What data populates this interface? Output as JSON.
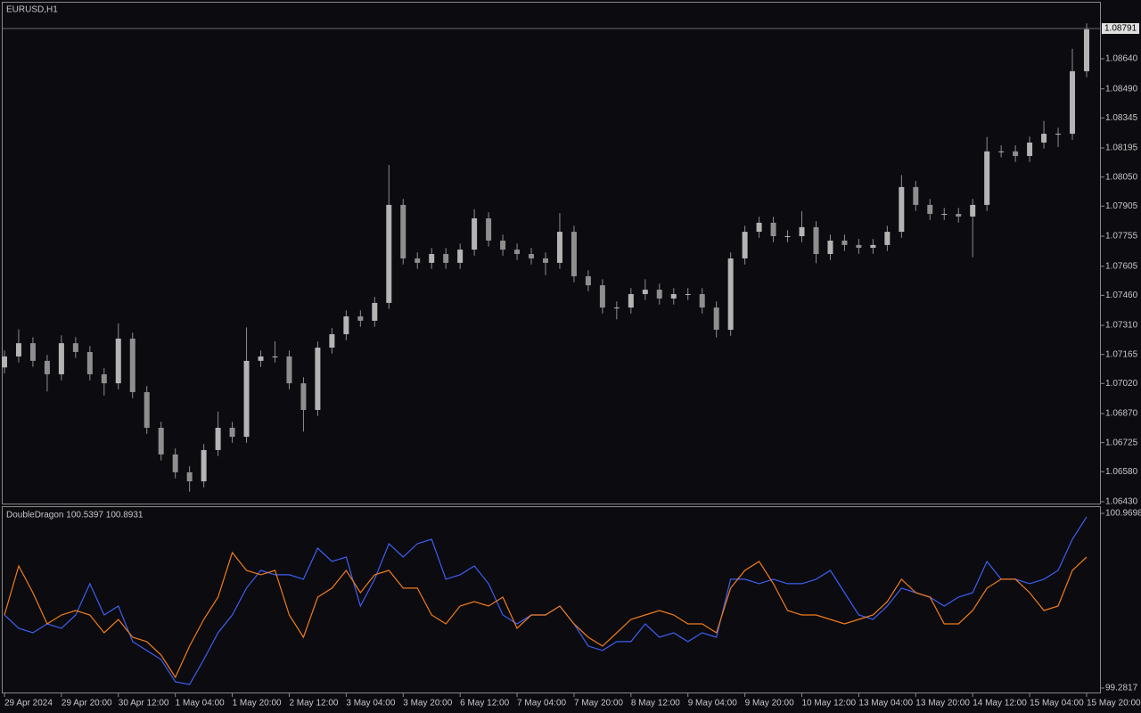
{
  "chart_data": [
    {
      "type": "candlestick",
      "title": "EURUSD,H1",
      "color": "#8e8e8e",
      "xlim": [
        -0.125,
        76.94
      ],
      "ylim": [
        1.06421,
        1.0892
      ],
      "last_price": 1.08791,
      "yticks": [
        {
          "value": 1.0864,
          "label": "1.08640"
        },
        {
          "value": 1.0849,
          "label": "1.08490"
        },
        1.08345,
        1.08195,
        {
          "value": 1.0805,
          "label": "1.08050"
        },
        1.07905,
        1.07755,
        1.07605,
        {
          "value": 1.0746,
          "label": "1.07460"
        },
        {
          "value": 1.0731,
          "label": "1.07310"
        },
        1.07165,
        {
          "value": 1.0702,
          "label": "1.07020"
        },
        {
          "value": 1.0687,
          "label": "1.06870"
        },
        1.06725,
        {
          "value": 1.0658,
          "label": "1.06580"
        },
        {
          "value": 1.0643,
          "label": "1.06430"
        }
      ],
      "open": [
        1.071,
        1.07155,
        1.07221,
        1.07133,
        1.07066,
        1.07221,
        1.07177,
        1.07066,
        1.07021,
        1.07244,
        1.06977,
        1.06799,
        1.06666,
        1.06577,
        1.06532,
        1.06688,
        1.06799,
        1.06754,
        1.07133,
        1.07155,
        1.07155,
        1.07021,
        1.06888,
        1.07199,
        1.07266,
        1.07355,
        1.07333,
        1.07422,
        1.07911,
        1.07644,
        1.07622,
        1.07666,
        1.07622,
        1.07688,
        1.07844,
        1.07733,
        1.07688,
        1.07666,
        1.07644,
        1.07622,
        1.07777,
        1.07555,
        1.0751,
        1.07399,
        1.07399,
        1.07466,
        1.07488,
        1.07444,
        1.07466,
        1.07466,
        1.07399,
        1.07288,
        1.07644,
        1.07777,
        1.07822,
        1.07755,
        1.07755,
        1.078,
        1.07666,
        1.07733,
        1.07711,
        1.07697,
        1.07711,
        1.07777,
        1.08,
        1.07911,
        1.07866,
        1.07866,
        1.07853,
        1.07911,
        1.08178,
        1.08178,
        1.08155,
        1.08222,
        1.08266,
        1.08266,
        1.08578
      ],
      "high": [
        1.07185,
        1.0729,
        1.07251,
        1.07163,
        1.0726,
        1.07251,
        1.07207,
        1.07096,
        1.0732,
        1.07274,
        1.07007,
        1.06829,
        1.06696,
        1.06607,
        1.06718,
        1.0688,
        1.06829,
        1.073,
        1.07185,
        1.0723,
        1.07185,
        1.07051,
        1.07229,
        1.07296,
        1.07385,
        1.07385,
        1.07452,
        1.0811,
        1.07941,
        1.07674,
        1.07696,
        1.07696,
        1.07718,
        1.0789,
        1.07874,
        1.07763,
        1.07718,
        1.07696,
        1.07674,
        1.0787,
        1.07807,
        1.07585,
        1.0754,
        1.07429,
        1.07496,
        1.0754,
        1.07518,
        1.07496,
        1.07496,
        1.07496,
        1.07429,
        1.07674,
        1.07807,
        1.07852,
        1.07852,
        1.07785,
        1.0788,
        1.0783,
        1.07763,
        1.07763,
        1.07741,
        1.07741,
        1.07807,
        1.0806,
        1.0803,
        1.07941,
        1.07896,
        1.07896,
        1.07941,
        1.0825,
        1.08208,
        1.08208,
        1.08252,
        1.0833,
        1.08296,
        1.0869,
        1.08817
      ],
      "low": [
        1.0707,
        1.07125,
        1.07103,
        1.0698,
        1.07036,
        1.07147,
        1.07036,
        1.0696,
        1.06991,
        1.06947,
        1.06769,
        1.06636,
        1.06547,
        1.0648,
        1.06502,
        1.06658,
        1.06724,
        1.06724,
        1.07103,
        1.07125,
        1.06991,
        1.0678,
        1.06858,
        1.07169,
        1.07236,
        1.07303,
        1.07303,
        1.07392,
        1.07614,
        1.07592,
        1.07592,
        1.07592,
        1.07592,
        1.07658,
        1.07703,
        1.07658,
        1.07636,
        1.07614,
        1.0756,
        1.07592,
        1.07525,
        1.0748,
        1.07369,
        1.0734,
        1.07369,
        1.07436,
        1.07414,
        1.07414,
        1.07436,
        1.07369,
        1.0725,
        1.07258,
        1.07614,
        1.07747,
        1.07725,
        1.07725,
        1.07725,
        1.0762,
        1.07636,
        1.07681,
        1.07667,
        1.07667,
        1.07681,
        1.07747,
        1.07881,
        1.07836,
        1.07836,
        1.07823,
        1.0765,
        1.07881,
        1.08148,
        1.08125,
        1.08125,
        1.08192,
        1.082,
        1.08236,
        1.08548
      ],
      "close": [
        1.07155,
        1.07221,
        1.07133,
        1.07066,
        1.07221,
        1.07177,
        1.07066,
        1.07021,
        1.07244,
        1.06977,
        1.06799,
        1.06666,
        1.06577,
        1.06532,
        1.06688,
        1.06799,
        1.06754,
        1.07133,
        1.07155,
        1.07155,
        1.07021,
        1.06888,
        1.07199,
        1.07266,
        1.07355,
        1.07333,
        1.07422,
        1.07911,
        1.07644,
        1.07622,
        1.07666,
        1.07622,
        1.07688,
        1.07844,
        1.07733,
        1.07688,
        1.07666,
        1.07644,
        1.07622,
        1.07777,
        1.07555,
        1.0751,
        1.07399,
        1.07399,
        1.07466,
        1.07488,
        1.07444,
        1.07466,
        1.07466,
        1.07399,
        1.07288,
        1.07644,
        1.07777,
        1.07822,
        1.07755,
        1.07755,
        1.078,
        1.07666,
        1.07733,
        1.07711,
        1.07697,
        1.07711,
        1.07777,
        1.08,
        1.07911,
        1.07866,
        1.07866,
        1.07853,
        1.07911,
        1.08178,
        1.08178,
        1.08155,
        1.08222,
        1.08266,
        1.08266,
        1.08578,
        1.08787
      ]
    },
    {
      "type": "line",
      "title": "DoubleDragon 100.5397 100.8931",
      "xlim": [
        -0.125,
        76.94
      ],
      "ylim": [
        99.2817,
        100.9698
      ],
      "yticks": [
        100.9698,
        99.2817
      ],
      "xticks": [
        {
          "value": 0,
          "label": "29 Apr 2024"
        },
        {
          "value": 4,
          "label": "29 Apr 20:00"
        },
        {
          "value": 8,
          "label": "30 Apr 12:00"
        },
        {
          "value": 12,
          "label": "1 May 04:00"
        },
        {
          "value": 16,
          "label": "1 May 20:00"
        },
        {
          "value": 20,
          "label": "2 May 12:00"
        },
        {
          "value": 24,
          "label": "3 May 04:00"
        },
        {
          "value": 28,
          "label": "3 May 20:00"
        },
        {
          "value": 32,
          "label": "6 May 12:00"
        },
        {
          "value": 36,
          "label": "7 May 04:00"
        },
        {
          "value": 40,
          "label": "7 May 20:00"
        },
        {
          "value": 44,
          "label": "8 May 12:00"
        },
        {
          "value": 48,
          "label": "9 May 04:00"
        },
        {
          "value": 52,
          "label": "9 May 20:00"
        },
        {
          "value": 56,
          "label": "10 May 12:00"
        },
        {
          "value": 60,
          "label": "13 May 04:00"
        },
        {
          "value": 64,
          "label": "13 May 20:00"
        },
        {
          "value": 68,
          "label": "14 May 12:00"
        },
        {
          "value": 72,
          "label": "15 May 04:00"
        },
        {
          "value": 76,
          "label": "15 May 20:00"
        }
      ],
      "series": [
        {
          "color": "#3d5ff2",
          "values": [
            99.988,
            99.859,
            99.816,
            99.902,
            99.859,
            99.988,
            100.29,
            99.988,
            100.074,
            99.73,
            99.644,
            99.557,
            99.342,
            99.316,
            99.557,
            99.816,
            99.988,
            100.247,
            100.419,
            100.376,
            100.376,
            100.333,
            100.634,
            100.505,
            100.548,
            100.074,
            100.333,
            100.677,
            100.548,
            100.677,
            100.72,
            100.333,
            100.376,
            100.462,
            100.29,
            99.988,
            99.902,
            99.988,
            99.988,
            100.074,
            99.902,
            99.687,
            99.644,
            99.73,
            99.73,
            99.902,
            99.773,
            99.816,
            99.73,
            99.816,
            99.773,
            100.333,
            100.333,
            100.29,
            100.333,
            100.29,
            100.29,
            100.333,
            100.419,
            100.203,
            99.988,
            99.945,
            100.074,
            100.247,
            100.203,
            100.16,
            100.074,
            100.16,
            100.203,
            100.505,
            100.333,
            100.333,
            100.29,
            100.333,
            100.419,
            100.72,
            100.936
          ]
        },
        {
          "color": "#f27c1c",
          "values": [
            99.988,
            100.462,
            100.203,
            99.902,
            99.988,
            100.031,
            99.988,
            99.816,
            99.945,
            99.773,
            99.73,
            99.601,
            99.385,
            99.687,
            99.945,
            100.16,
            100.591,
            100.419,
            100.376,
            100.419,
            99.988,
            99.773,
            100.16,
            100.247,
            100.419,
            100.203,
            100.376,
            100.419,
            100.247,
            100.247,
            99.988,
            99.902,
            100.074,
            100.117,
            100.074,
            100.16,
            99.859,
            99.988,
            99.988,
            100.074,
            99.902,
            99.773,
            99.687,
            99.816,
            99.945,
            99.988,
            100.031,
            99.988,
            99.902,
            99.902,
            99.816,
            100.247,
            100.419,
            100.505,
            100.29,
            100.031,
            99.988,
            99.988,
            99.945,
            99.902,
            99.945,
            99.988,
            100.117,
            100.333,
            100.203,
            100.16,
            99.902,
            99.902,
            100.031,
            100.247,
            100.333,
            100.333,
            100.203,
            100.031,
            100.074,
            100.419,
            100.548
          ]
        }
      ]
    }
  ]
}
